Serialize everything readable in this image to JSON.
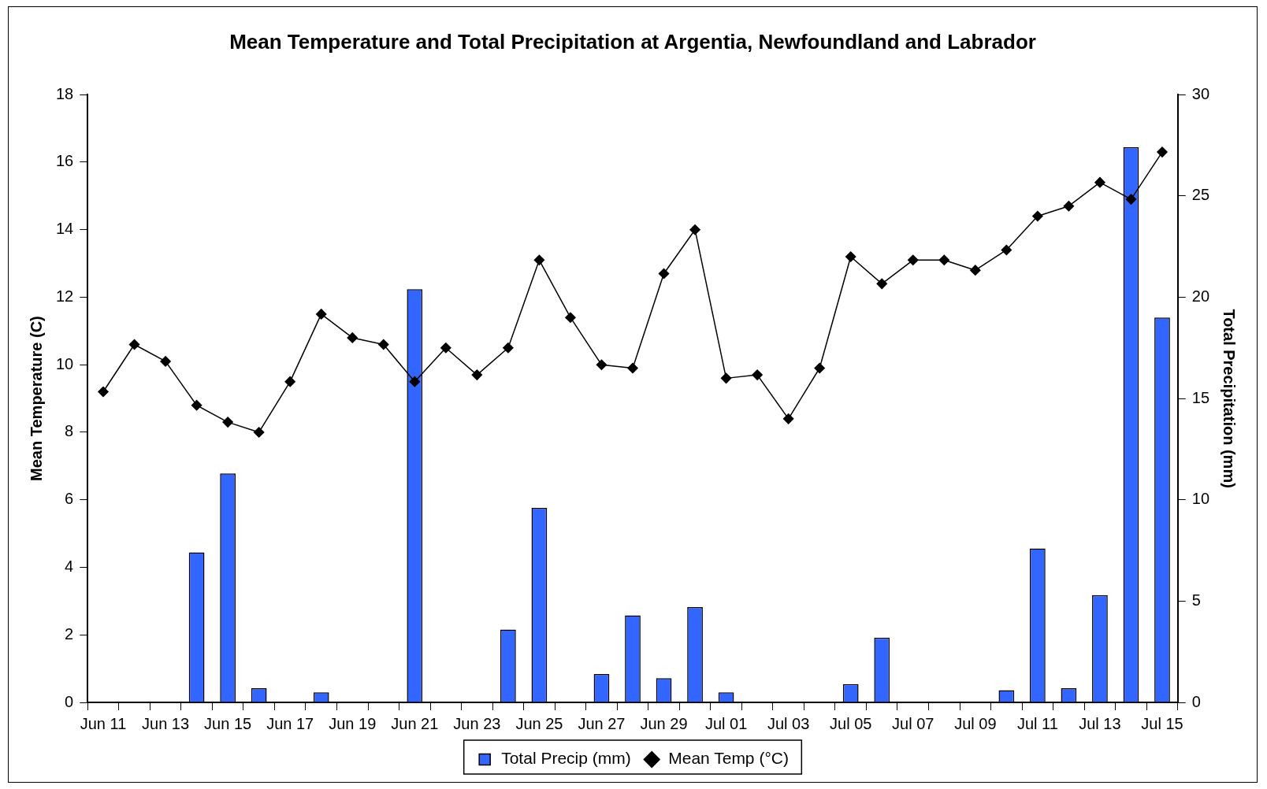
{
  "chart_data": {
    "type": "bar",
    "title": "Mean Temperature and Total Precipitation at Argentia, Newfoundland and Labrador",
    "ylabel": "Mean Temperature (C)",
    "y2label": "Total Precipitation (mm)",
    "categories": [
      "Jun 11",
      null,
      "Jun 13",
      null,
      "Jun 15",
      null,
      "Jun 17",
      null,
      "Jun 19",
      null,
      "Jun 21",
      null,
      "Jun 23",
      null,
      "Jun 25",
      null,
      "Jun 27",
      null,
      "Jun 29",
      null,
      "Jul 01",
      null,
      "Jul 03",
      null,
      "Jul 05",
      null,
      "Jul 07",
      null,
      "Jul 09",
      null,
      "Jul 11",
      null,
      "Jul 13",
      null,
      "Jul 15"
    ],
    "series": [
      {
        "name": "Total Precip (mm)",
        "axis": "y2",
        "color": "#3366ff",
        "values": [
          0,
          0,
          0,
          7.4,
          11.3,
          0.7,
          0,
          0.5,
          0,
          0,
          20.4,
          0,
          0,
          3.6,
          9.6,
          0,
          1.4,
          4.3,
          1.2,
          4.7,
          0.5,
          0,
          0,
          0,
          0.9,
          3.2,
          0,
          0,
          0,
          0.6,
          7.6,
          0.7,
          5.3,
          27.4,
          19.0
        ]
      },
      {
        "name": "Mean Temp (°C)",
        "type": "line",
        "color": "#000000",
        "values": [
          9.2,
          10.6,
          10.1,
          8.8,
          8.3,
          8.0,
          9.5,
          11.5,
          10.8,
          10.6,
          9.5,
          10.5,
          9.7,
          10.5,
          13.1,
          11.4,
          10.0,
          9.9,
          12.7,
          14.0,
          9.6,
          9.7,
          8.4,
          9.9,
          13.2,
          12.4,
          13.1,
          13.1,
          12.8,
          13.4,
          14.4,
          14.7,
          15.4,
          14.9,
          16.3
        ]
      }
    ],
    "ylim": [
      0,
      18
    ],
    "yticks": [
      0,
      2,
      4,
      6,
      8,
      10,
      12,
      14,
      16,
      18
    ],
    "y2lim": [
      0,
      30
    ],
    "y2ticks": [
      0,
      5,
      10,
      15,
      20,
      25,
      30
    ],
    "grid": false,
    "legend": "bottom",
    "marker": "diamond",
    "line_style": "solid"
  }
}
